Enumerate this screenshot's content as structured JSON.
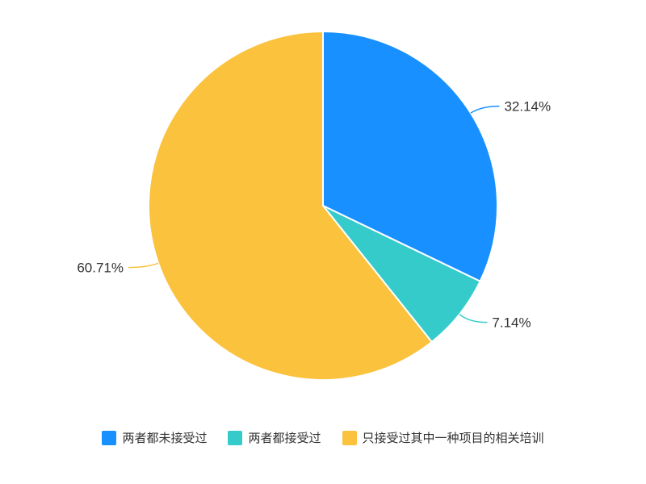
{
  "chart_data": {
    "type": "pie",
    "slices": [
      {
        "name": "两者都未接受过",
        "value": 32.14,
        "label": "32.14%",
        "color": "#1890ff"
      },
      {
        "name": "两者都接受过",
        "value": 7.14,
        "label": "7.14%",
        "color": "#36cbcb"
      },
      {
        "name": "只接受过其中一种项目的相关培训",
        "value": 60.71,
        "label": "60.71%",
        "color": "#fbc23e"
      }
    ],
    "legend_position": "bottom"
  }
}
